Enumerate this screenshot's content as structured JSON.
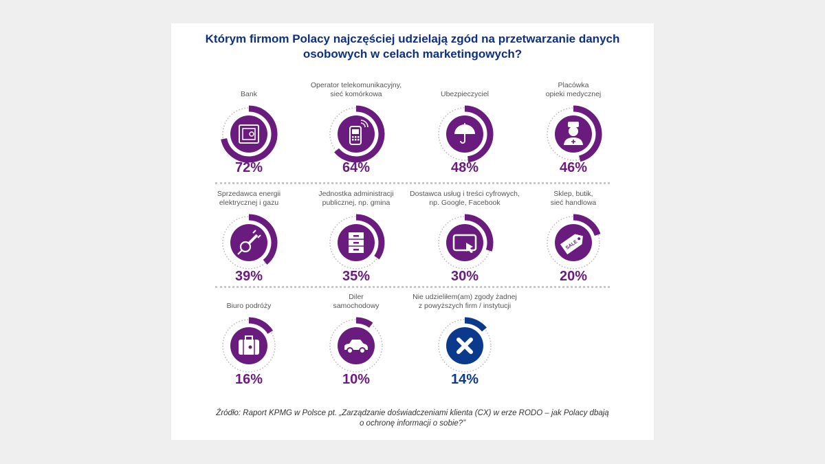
{
  "title_line1": "Którym firmom Polacy najczęściej udzielają zgód na przetwarzanie danych",
  "title_line2": "osobowych w celach marketingowych?",
  "colors": {
    "purple": "#6a1b7e",
    "blue": "#0b3a8c",
    "track": "#bdbdbd"
  },
  "chart_data": {
    "type": "radial-progress",
    "title": "Którym firmom Polacy najczęściej udzielają zgód na przetwarzanie danych osobowych w celach marketingowych?",
    "unit": "%",
    "items": [
      {
        "label1": "Bank",
        "label2": "",
        "value": 72,
        "pct": "72%",
        "icon": "safe-icon"
      },
      {
        "label1": "Operator telekomunikacyjny,",
        "label2": "sieć komórkowa",
        "value": 64,
        "pct": "64%",
        "icon": "mobile-phone-icon"
      },
      {
        "label1": "Ubezpieczyciel",
        "label2": "",
        "value": 48,
        "pct": "48%",
        "icon": "umbrella-icon"
      },
      {
        "label1": "Placówka",
        "label2": "opieki medycznej",
        "value": 46,
        "pct": "46%",
        "icon": "nurse-icon"
      },
      {
        "label1": "Sprzedawca energii",
        "label2": "elektrycznej i gazu",
        "value": 39,
        "pct": "39%",
        "icon": "plug-icon"
      },
      {
        "label1": "Jednostka administracji",
        "label2": "publicznej, np. gmina",
        "value": 35,
        "pct": "35%",
        "icon": "filing-cabinet-icon"
      },
      {
        "label1": "Dostawca usług i treści cyfrowych,",
        "label2": "np. Google, Facebook",
        "value": 30,
        "pct": "30%",
        "icon": "tablet-touch-icon"
      },
      {
        "label1": "Sklep, butik,",
        "label2": "sieć handlowa",
        "value": 20,
        "pct": "20%",
        "icon": "sale-tag-icon",
        "tag_text": "SALE"
      },
      {
        "label1": "Biuro podróży",
        "label2": "",
        "value": 16,
        "pct": "16%",
        "icon": "suitcase-icon"
      },
      {
        "label1": "Diler",
        "label2": "samochodowy",
        "value": 10,
        "pct": "10%",
        "icon": "car-icon"
      },
      {
        "label1": "Nie udzieliłem(am) zgody żadnej",
        "label2": "z powyższych firm / instytucji",
        "value": 14,
        "pct": "14%",
        "icon": "x-icon",
        "highlight": true
      }
    ]
  },
  "source_line1": "Źródło: Raport KPMG w Polsce pt. „Zarządzanie doświadczeniami klienta (CX) w erze RODO – jak Polacy dbają",
  "source_line2": "o ochronę informacji o sobie?”"
}
